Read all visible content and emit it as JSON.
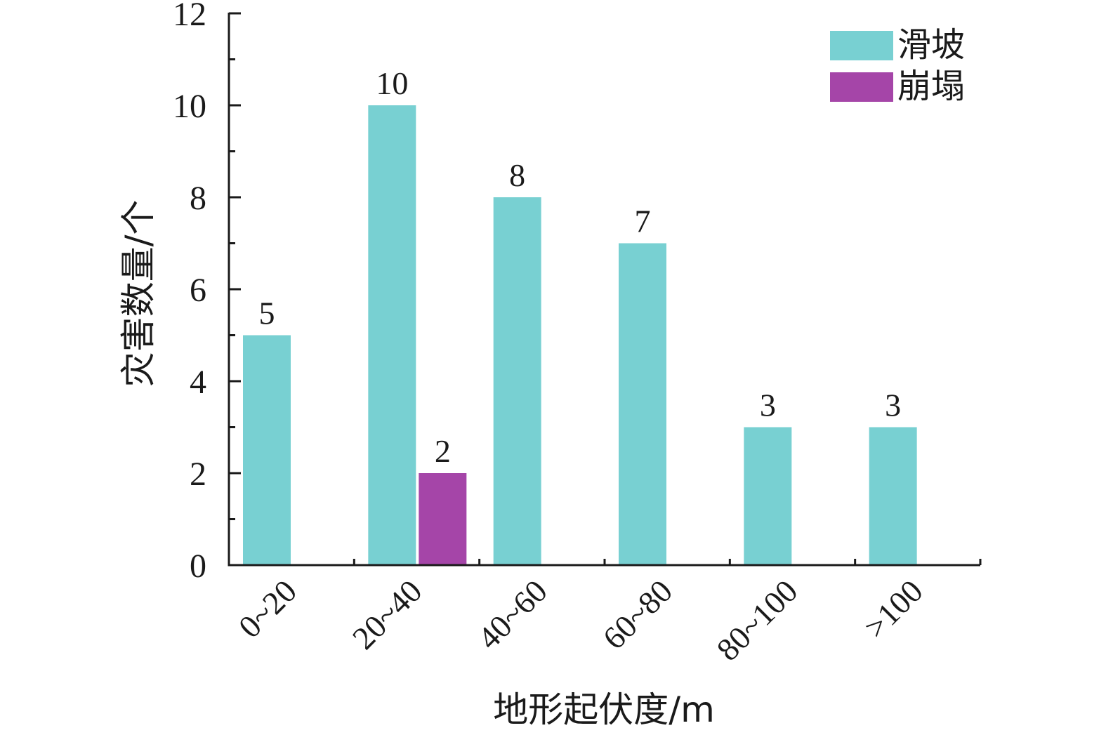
{
  "chart_data": {
    "type": "bar",
    "categories": [
      "0~20",
      "20~40",
      "40~60",
      "60~80",
      "80~100",
      ">100"
    ],
    "series": [
      {
        "name": "滑坡",
        "values": [
          5,
          10,
          8,
          7,
          3,
          3
        ],
        "color": "#78d0d2"
      },
      {
        "name": "崩塌",
        "values": [
          0,
          2,
          0,
          0,
          0,
          0
        ],
        "color": "#a545a8"
      }
    ],
    "data_labels": [
      [
        "5",
        "10",
        "8",
        "7",
        "3",
        "3"
      ],
      [
        "",
        "2",
        "",
        "",
        "",
        ""
      ]
    ],
    "xlabel": "地形起伏度/m",
    "ylabel": "灾害数量/个",
    "ylim": [
      0,
      12
    ],
    "yticks": [
      "0",
      "2",
      "4",
      "6",
      "8",
      "10",
      "12"
    ],
    "grid": false,
    "legend_position": "top-right"
  }
}
